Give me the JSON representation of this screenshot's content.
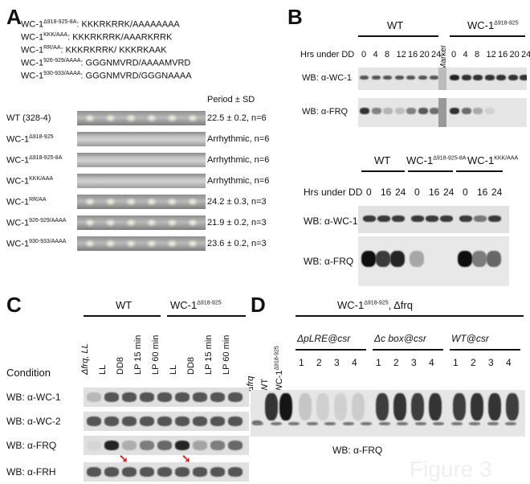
{
  "panelA": {
    "label": "A",
    "mutants": [
      {
        "name": "WC-1",
        "sup": "Δ918-925-8A",
        "seq": ": KKKRKRRK/AAAAAAAA"
      },
      {
        "name": "WC-1",
        "sup": "KKK/AAA",
        "seq": ": KKKRKRRK/AAARKRRK"
      },
      {
        "name": "WC-1",
        "sup": "RR/AA",
        "seq": ": KKKRKRRK/ KKKRKAAK"
      },
      {
        "name": "WC-1",
        "sup": "926-929/AAAA",
        "seq": ": GGGNMVRD/AAAAMVRD"
      },
      {
        "name": "WC-1",
        "sup": "930-933/AAAA",
        "seq": ": GGGNMVRD/GGGNAAAA"
      }
    ],
    "period_header": "Period ± SD",
    "rows": [
      {
        "name": "WT (328-4)",
        "sup": "",
        "period": "22.5 ± 0.2, n=6",
        "rhythmic": true
      },
      {
        "name": "WC-1",
        "sup": "Δ918-925",
        "period": "Arrhythmic, n=6",
        "rhythmic": false
      },
      {
        "name": "WC-1",
        "sup": "Δ918-925-8A",
        "period": "Arrhythmic, n=6",
        "rhythmic": false
      },
      {
        "name": "WC-1",
        "sup": "KKK/AAA",
        "period": "Arrhythmic, n=6",
        "rhythmic": false
      },
      {
        "name": "WC-1",
        "sup": "RR/AA",
        "period": "24.2 ± 0.3, n=3",
        "rhythmic": true
      },
      {
        "name": "WC-1",
        "sup": "926-929/AAAA",
        "period": "21.9 ± 0.2, n=3",
        "rhythmic": true
      },
      {
        "name": "WC-1",
        "sup": "930-933/AAAA",
        "period": "23.6 ± 0.2, n=3",
        "rhythmic": true
      }
    ]
  },
  "panelB": {
    "label": "B",
    "wt_label": "WT",
    "mut_label": "WC-1",
    "mut_sup": "Δ918-925",
    "marker": "Marker",
    "hrs_label": "Hrs under DD",
    "timepoints": [
      "0",
      "4",
      "8",
      "12",
      "16",
      "20",
      "24"
    ],
    "wb_wc1": "WB: α-WC-1",
    "wb_frq": "WB: α-FRQ",
    "lower": {
      "wt_label": "WT",
      "g2_name": "WC-1",
      "g2_sup": "Δ918-925-8A",
      "g3_name": "WC-1",
      "g3_sup": "KKK/AAA",
      "hrs_label": "Hrs under DD",
      "timepoints": [
        "0",
        "16",
        "24"
      ],
      "wb_wc1": "WB: α-WC-1",
      "wb_frq": "WB: α-FRQ"
    }
  },
  "panelC": {
    "label": "C",
    "wt_label": "WT",
    "mut_label": "WC-1",
    "mut_sup": "Δ918-925",
    "condition_label": "Condition",
    "lanes": [
      "Δfrq, LL",
      "LL",
      "DD8",
      "LP 15 min",
      "LP 60 min",
      "LL",
      "DD8",
      "LP 15 min",
      "LP 60 min"
    ],
    "blots": [
      "WB: α-WC-1",
      "WB: α-WC-2",
      "WB: α-FRQ",
      "WB: α-FRH"
    ]
  },
  "panelD": {
    "label": "D",
    "title_name": "WC-1",
    "title_sup": "Δ918-925",
    "title_suffix": ", Δfrq",
    "lane_dfrq": "Δfrq",
    "lane_wt": "WT",
    "lane_wc1": "WC-1",
    "lane_wc1_sup": "Δ918-925",
    "groups": [
      "ΔpLRE@csr",
      "Δc box@csr",
      "WT@csr"
    ],
    "numbers": [
      "1",
      "2",
      "3",
      "4"
    ],
    "asterisk": "*",
    "wb_label": "WB: α-FRQ"
  },
  "watermark": "Figure 3"
}
